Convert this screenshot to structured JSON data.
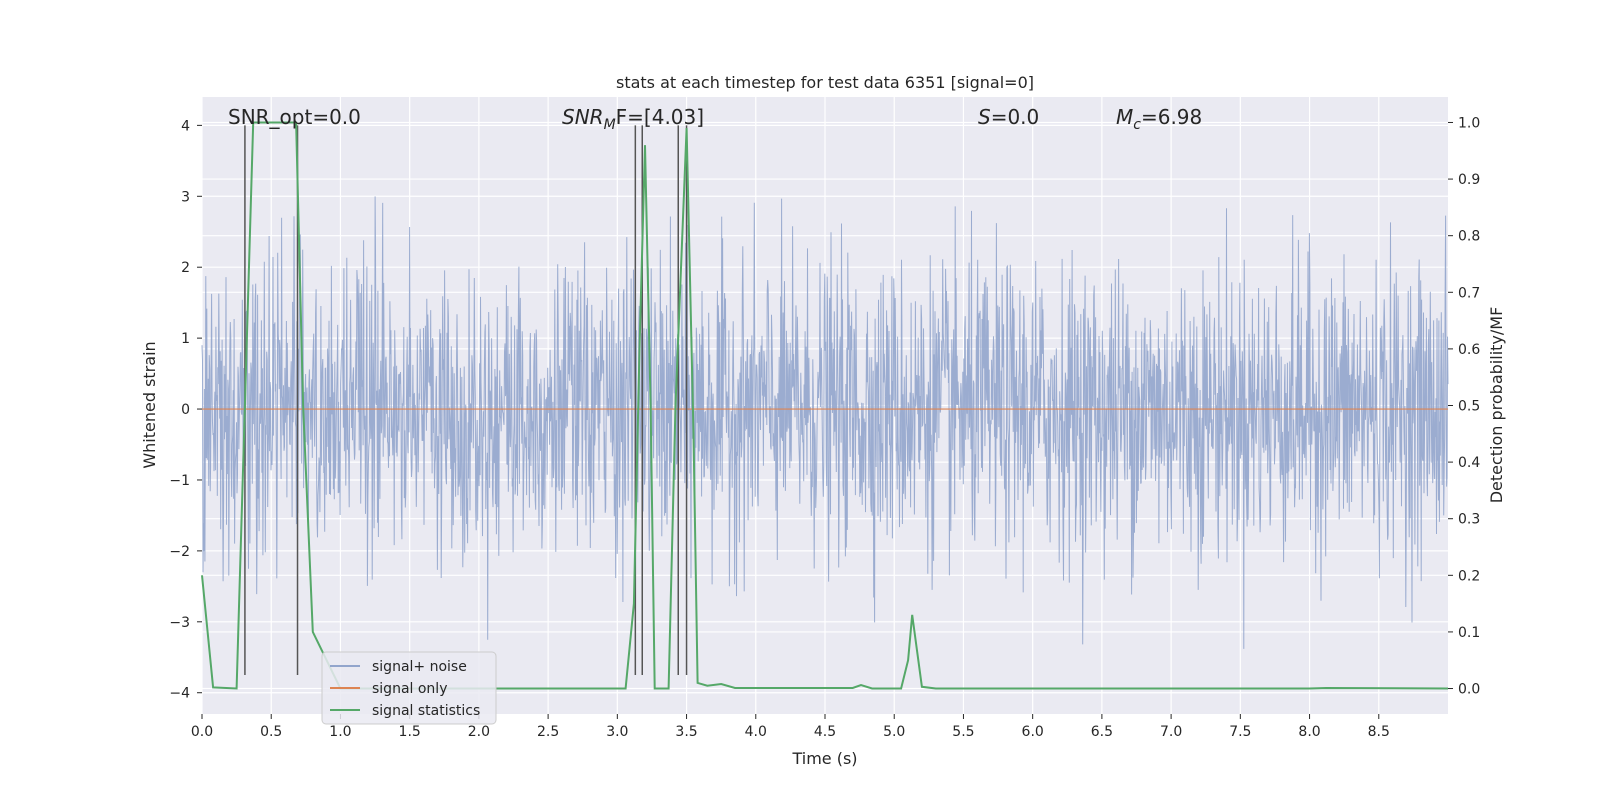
{
  "chart_data": {
    "type": "line",
    "title": "stats at each timestep for test data 6351 [signal=0]",
    "xlabel": "Time (s)",
    "ylabel_left": "Whitened strain",
    "ylabel_right": "Detection probability/MF",
    "xlim": [
      0.0,
      9.0
    ],
    "ylim_left": [
      -4.3,
      4.4
    ],
    "ylim_right": [
      -0.045,
      1.045
    ],
    "x_ticks": [
      "0.0",
      "0.5",
      "1.0",
      "1.5",
      "2.0",
      "2.5",
      "3.0",
      "3.5",
      "4.0",
      "4.5",
      "5.0",
      "5.5",
      "6.0",
      "6.5",
      "7.0",
      "7.5",
      "8.0",
      "8.5"
    ],
    "y_left_ticks": [
      "4",
      "3",
      "2",
      "1",
      "0",
      "−1",
      "−2",
      "−3",
      "−4"
    ],
    "y_right_ticks": [
      "1.0",
      "0.9",
      "0.8",
      "0.7",
      "0.6",
      "0.5",
      "0.4",
      "0.3",
      "0.2",
      "0.1",
      "0.0"
    ],
    "grid": true,
    "legend_position": "lower-left",
    "annotations": {
      "snr_opt": "SNR_opt=0.0",
      "snr_mf_main": "SNR",
      "snr_mf_sub": "M",
      "snr_mf_rest": "F=[4.03]",
      "s_main": "S",
      "s_rest": "=0.0",
      "mc_main": "M",
      "mc_sub": "c",
      "mc_rest": "=6.98"
    },
    "vertical_markers_x": [
      0.31,
      0.69,
      3.13,
      3.18,
      3.44,
      3.5
    ],
    "series": [
      {
        "name": "signal+ noise",
        "axis": "left",
        "color": "#92a5cc",
        "description_values": "white Gaussian noise, approx. std 1, x from 0 to 9 s",
        "noise_std": 1.0
      },
      {
        "name": "signal only",
        "axis": "left",
        "color": "#dd8452",
        "constant": 0.0
      },
      {
        "name": "signal statistics",
        "axis": "right",
        "color": "#55a868",
        "points": [
          [
            0.0,
            0.2
          ],
          [
            0.08,
            0.002
          ],
          [
            0.25,
            0.0
          ],
          [
            0.31,
            0.5
          ],
          [
            0.37,
            1.0
          ],
          [
            0.5,
            1.0
          ],
          [
            0.68,
            1.0
          ],
          [
            0.73,
            0.5
          ],
          [
            0.8,
            0.1
          ],
          [
            0.9,
            0.05
          ],
          [
            1.0,
            0.0
          ],
          [
            3.06,
            0.0
          ],
          [
            3.12,
            0.15
          ],
          [
            3.16,
            0.6
          ],
          [
            3.2,
            0.96
          ],
          [
            3.24,
            0.5
          ],
          [
            3.27,
            0.0
          ],
          [
            3.37,
            0.0
          ],
          [
            3.42,
            0.5
          ],
          [
            3.5,
            0.99
          ],
          [
            3.55,
            0.45
          ],
          [
            3.58,
            0.01
          ],
          [
            3.65,
            0.005
          ],
          [
            3.75,
            0.008
          ],
          [
            3.85,
            0.001
          ],
          [
            4.7,
            0.001
          ],
          [
            4.76,
            0.006
          ],
          [
            4.84,
            0.0
          ],
          [
            5.05,
            0.0
          ],
          [
            5.1,
            0.05
          ],
          [
            5.13,
            0.13
          ],
          [
            5.2,
            0.003
          ],
          [
            5.3,
            0.0
          ],
          [
            8.0,
            0.0
          ],
          [
            8.12,
            0.001
          ],
          [
            9.0,
            0.0
          ]
        ]
      }
    ]
  }
}
